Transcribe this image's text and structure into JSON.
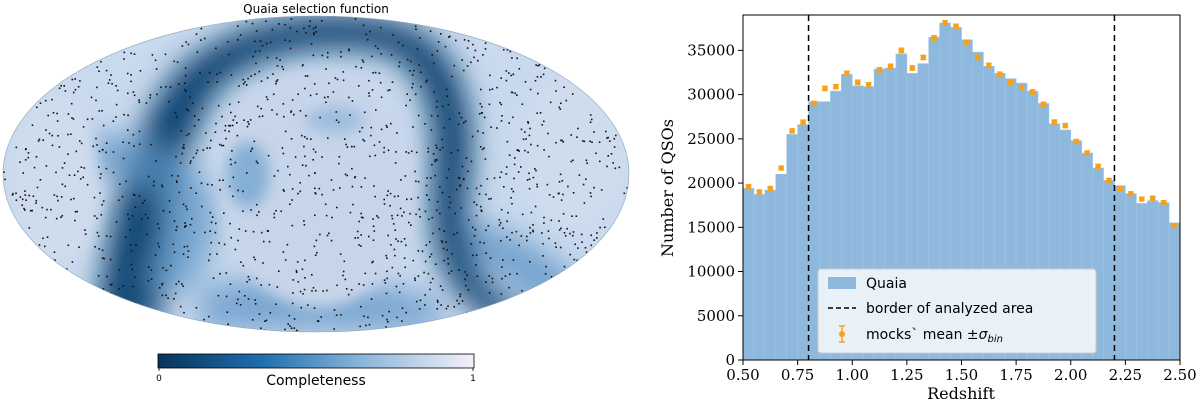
{
  "chart_data": [
    {
      "type": "heatmap",
      "title": "Quaia selection function",
      "projection": "mollweide",
      "colorbar": {
        "label": "Completeness",
        "min_label": "0",
        "max_label": "1",
        "colors": [
          "#08335a",
          "#1f6fb0",
          "#8fb8db",
          "#f4f0f8"
        ]
      }
    },
    {
      "type": "bar",
      "xlabel": "Redshift",
      "ylabel": "Number of QSOs",
      "xlim": [
        0.5,
        2.5
      ],
      "ylim": [
        0,
        39000
      ],
      "bin_width": 0.05,
      "x_ticks": [
        "0.50",
        "0.75",
        "1.00",
        "1.25",
        "1.50",
        "1.75",
        "2.00",
        "2.25",
        "2.50"
      ],
      "x_tick_values": [
        0.5,
        0.75,
        1.0,
        1.25,
        1.5,
        1.75,
        2.0,
        2.25,
        2.5
      ],
      "y_ticks": [
        "0",
        "5000",
        "10000",
        "15000",
        "20000",
        "25000",
        "30000",
        "35000"
      ],
      "y_tick_values": [
        0,
        5000,
        10000,
        15000,
        20000,
        25000,
        30000,
        35000
      ],
      "bin_starts": [
        0.5,
        0.55,
        0.6,
        0.65,
        0.7,
        0.75,
        0.8,
        0.85,
        0.9,
        0.95,
        1.0,
        1.05,
        1.1,
        1.15,
        1.2,
        1.25,
        1.3,
        1.35,
        1.4,
        1.45,
        1.5,
        1.55,
        1.6,
        1.65,
        1.7,
        1.75,
        1.8,
        1.85,
        1.9,
        1.95,
        2.0,
        2.05,
        2.1,
        2.15,
        2.2,
        2.25,
        2.3,
        2.35,
        2.4,
        2.45
      ],
      "series": [
        {
          "name": "Quaia",
          "color": "#8fb9dc",
          "values": [
            19400,
            18700,
            19200,
            21000,
            25500,
            26600,
            29200,
            29200,
            30400,
            32300,
            31000,
            30900,
            32900,
            33000,
            34600,
            32400,
            33500,
            36500,
            38100,
            37600,
            36200,
            34800,
            33200,
            32400,
            31800,
            31300,
            30400,
            29000,
            26700,
            26000,
            24800,
            23400,
            21700,
            20300,
            19700,
            18800,
            17700,
            18000,
            17800,
            15500
          ]
        },
        {
          "name": "mocks` mean ±σbin",
          "color": "#f5a21a",
          "values": [
            19600,
            19000,
            19400,
            21700,
            25900,
            26900,
            29000,
            30700,
            30900,
            32400,
            31400,
            31100,
            32800,
            33200,
            35000,
            33000,
            34200,
            36400,
            38100,
            37700,
            35900,
            34200,
            33300,
            32300,
            31400,
            30800,
            30300,
            28900,
            26900,
            26500,
            24700,
            23400,
            21900,
            20300,
            19400,
            18800,
            18200,
            18300,
            17800,
            15200
          ],
          "errors": [
            220,
            220,
            220,
            220,
            230,
            230,
            240,
            240,
            240,
            250,
            250,
            250,
            250,
            250,
            260,
            250,
            250,
            260,
            270,
            270,
            260,
            260,
            250,
            250,
            250,
            250,
            250,
            240,
            240,
            240,
            230,
            230,
            220,
            220,
            220,
            210,
            210,
            210,
            210,
            200
          ]
        }
      ],
      "vlines": [
        0.8,
        2.2
      ],
      "legend": {
        "position": "lower-center",
        "entries": [
          "Quaia",
          "border of analyzed area",
          "mocks` mean ±"
        ],
        "sigma_symbol": "σ",
        "sigma_sub": "bin"
      }
    }
  ]
}
